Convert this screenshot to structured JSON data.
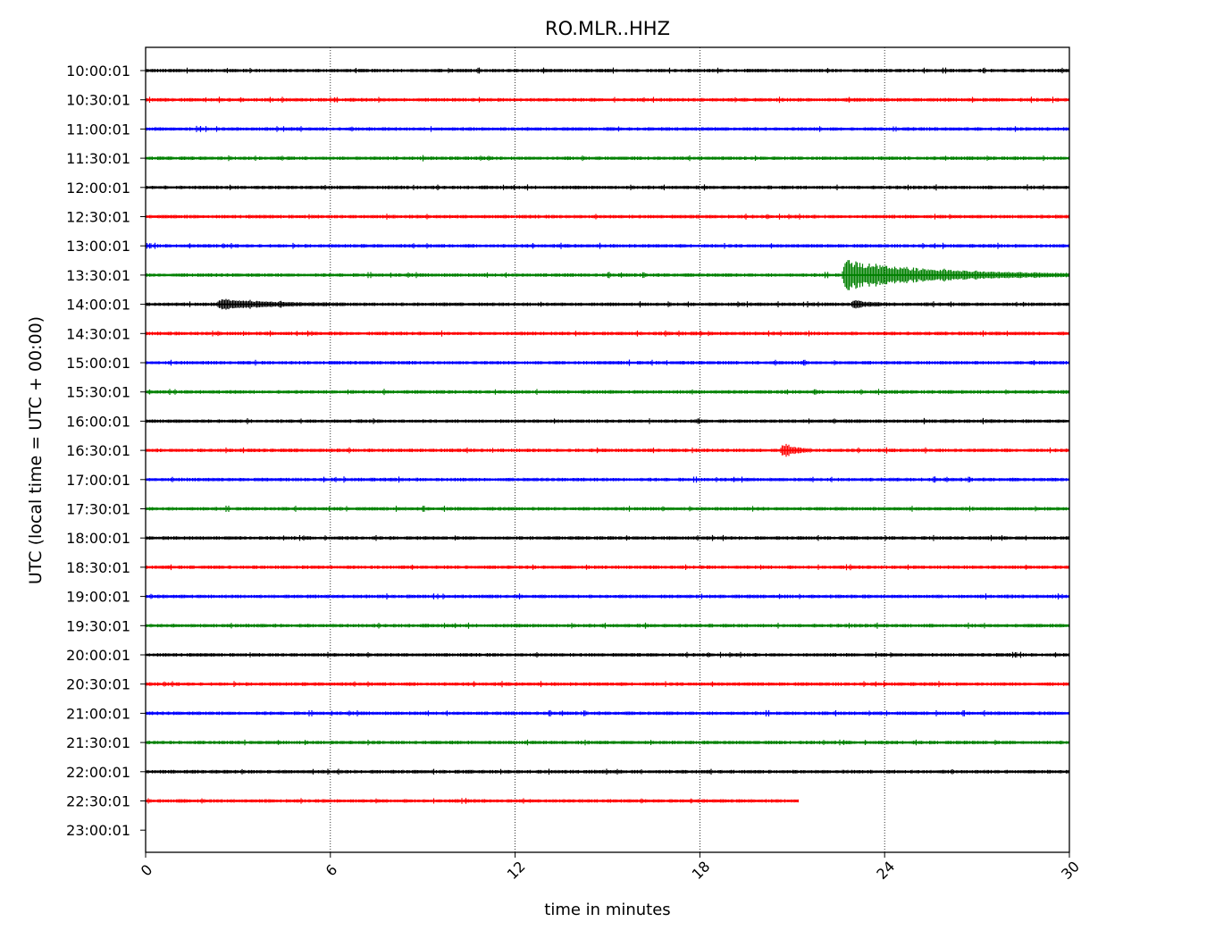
{
  "chart_data": {
    "type": "line",
    "title": "RO.MLR..HHZ",
    "xlabel": "time in minutes",
    "ylabel": "UTC (local time = UTC + 00:00)",
    "xlim": [
      0,
      30
    ],
    "xticks": [
      "0",
      "6",
      "12",
      "18",
      "24",
      "30"
    ],
    "grid": "vertical dotted lines at x ticks",
    "rows": [
      "10:00:01",
      "10:30:01",
      "11:00:01",
      "11:30:01",
      "12:00:01",
      "12:30:01",
      "13:00:01",
      "13:30:01",
      "14:00:01",
      "14:30:01",
      "15:00:01",
      "15:30:01",
      "16:00:01",
      "16:30:01",
      "17:00:01",
      "17:30:01",
      "18:00:01",
      "18:30:01",
      "19:00:01",
      "19:30:01",
      "20:00:01",
      "20:30:01",
      "21:00:01",
      "21:30:01",
      "22:00:01",
      "22:30:01",
      "23:00:01"
    ],
    "colors_cycle": [
      "#000000",
      "#ff0000",
      "#0000ff",
      "#008000"
    ],
    "trace_end_minutes": [
      30,
      30,
      30,
      30,
      30,
      30,
      30,
      30,
      30,
      30,
      30,
      30,
      30,
      30,
      30,
      30,
      30,
      30,
      30,
      30,
      30,
      30,
      30,
      30,
      30,
      21.2,
      0
    ],
    "events": [
      {
        "row": "13:30:01",
        "start_min": 22.6,
        "end_min": 30,
        "peak_amplitude": "large",
        "decay": "slow"
      },
      {
        "row": "14:00:01",
        "start_min": 2.3,
        "end_min": 6.5,
        "peak_amplitude": "small",
        "decay": "medium"
      },
      {
        "row": "14:00:01",
        "start_min": 22.9,
        "end_min": 24.2,
        "peak_amplitude": "small",
        "decay": "fast"
      },
      {
        "row": "16:30:01",
        "start_min": 20.6,
        "end_min": 21.6,
        "peak_amplitude": "medium",
        "decay": "fast"
      }
    ]
  }
}
